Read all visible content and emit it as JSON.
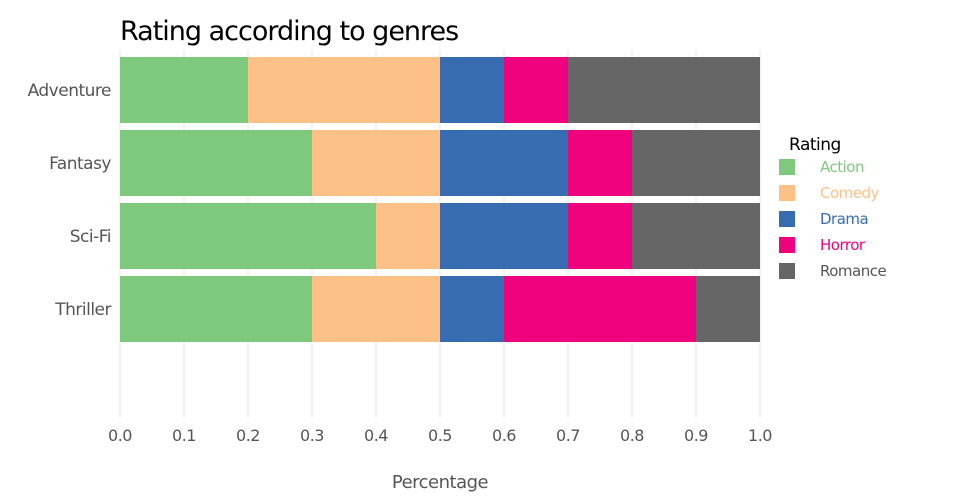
{
  "chart_data": {
    "type": "bar",
    "orientation": "horizontal",
    "stacked": true,
    "title": "Rating according to genres",
    "xlabel": "Percentage",
    "ylabel": "",
    "xlim": [
      0,
      1
    ],
    "x_ticks": [
      "0.0",
      "0.1",
      "0.2",
      "0.3",
      "0.4",
      "0.5",
      "0.6",
      "0.7",
      "0.8",
      "0.9",
      "1.0"
    ],
    "categories": [
      "Adventure",
      "Fantasy",
      "Sci-Fi",
      "Thriller"
    ],
    "series": [
      {
        "name": "Action",
        "color": "#7fc97f",
        "values": [
          0.2,
          0.3,
          0.4,
          0.3
        ]
      },
      {
        "name": "Comedy",
        "color": "#fdc086",
        "values": [
          0.3,
          0.2,
          0.1,
          0.2
        ]
      },
      {
        "name": "Drama",
        "color": "#386cb0",
        "values": [
          0.1,
          0.2,
          0.2,
          0.1
        ]
      },
      {
        "name": "Horror",
        "color": "#f0027f",
        "values": [
          0.1,
          0.1,
          0.1,
          0.3
        ]
      },
      {
        "name": "Romance",
        "color": "#666666",
        "values": [
          0.3,
          0.2,
          0.2,
          0.1
        ]
      }
    ],
    "legend": {
      "title": "Rating",
      "position": "right"
    },
    "grid": true
  }
}
